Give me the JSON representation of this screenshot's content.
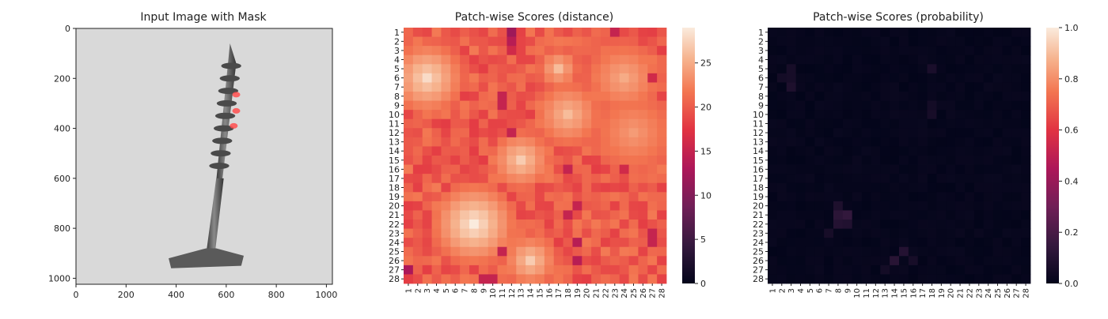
{
  "chart_data": [
    {
      "type": "image",
      "title": "Input Image with Mask",
      "xlim": [
        0,
        1024
      ],
      "ylim": [
        1024,
        0
      ],
      "xticks": [
        0,
        200,
        400,
        600,
        800,
        1000
      ],
      "yticks": [
        0,
        200,
        400,
        600,
        800,
        1000
      ],
      "mask_color": "#ff4d4d",
      "background_color": "#d9d9d9",
      "object_color": "#5a5a5a",
      "mask_regions": [
        {
          "x": 640,
          "y": 265
        },
        {
          "x": 640,
          "y": 330
        },
        {
          "x": 630,
          "y": 390
        }
      ]
    },
    {
      "type": "heatmap",
      "title": "Patch-wise Scores (distance)",
      "rows": [
        "1",
        "2",
        "3",
        "4",
        "5",
        "6",
        "7",
        "8",
        "9",
        "10",
        "11",
        "12",
        "13",
        "14",
        "15",
        "16",
        "17",
        "18",
        "19",
        "20",
        "21",
        "22",
        "23",
        "24",
        "25",
        "26",
        "27",
        "28"
      ],
      "cols": [
        "1",
        "2",
        "3",
        "4",
        "5",
        "6",
        "7",
        "8",
        "9",
        "10",
        "11",
        "12",
        "13",
        "14",
        "15",
        "16",
        "17",
        "18",
        "19",
        "20",
        "21",
        "22",
        "23",
        "24",
        "25",
        "26",
        "27",
        "28"
      ],
      "value_range": [
        0,
        29
      ],
      "colorbar_ticks": [
        0,
        5,
        10,
        15,
        20,
        25
      ],
      "base_value": 20,
      "cold_spots": [
        {
          "row": 1,
          "col": 12,
          "value": 12
        },
        {
          "row": 1,
          "col": 23,
          "value": 15
        },
        {
          "row": 2,
          "col": 12,
          "value": 14
        },
        {
          "row": 3,
          "col": 12,
          "value": 16
        },
        {
          "row": 8,
          "col": 11,
          "value": 15
        },
        {
          "row": 9,
          "col": 11,
          "value": 15
        },
        {
          "row": 12,
          "col": 12,
          "value": 15
        },
        {
          "row": 16,
          "col": 18,
          "value": 15
        },
        {
          "row": 20,
          "col": 19,
          "value": 15
        },
        {
          "row": 21,
          "col": 18,
          "value": 15
        },
        {
          "row": 24,
          "col": 19,
          "value": 14
        },
        {
          "row": 25,
          "col": 11,
          "value": 15
        },
        {
          "row": 26,
          "col": 19,
          "value": 14
        },
        {
          "row": 27,
          "col": 1,
          "value": 13
        },
        {
          "row": 28,
          "col": 9,
          "value": 15
        },
        {
          "row": 28,
          "col": 10,
          "value": 15
        },
        {
          "row": 23,
          "col": 27,
          "value": 15
        },
        {
          "row": 24,
          "col": 27,
          "value": 15
        },
        {
          "row": 6,
          "col": 27,
          "value": 16
        },
        {
          "row": 16,
          "col": 24,
          "value": 16
        }
      ],
      "warm_regions": [
        {
          "row": 6,
          "col": 3,
          "radius": 2.2,
          "value": 28
        },
        {
          "row": 22,
          "col": 8,
          "radius": 2.5,
          "value": 29
        },
        {
          "row": 10,
          "col": 18,
          "radius": 2.0,
          "value": 26
        },
        {
          "row": 15,
          "col": 13,
          "radius": 1.8,
          "value": 27
        },
        {
          "row": 26,
          "col": 14,
          "radius": 1.6,
          "value": 27
        },
        {
          "row": 6,
          "col": 24,
          "radius": 2.2,
          "value": 25
        },
        {
          "row": 12,
          "col": 25,
          "radius": 2.5,
          "value": 24
        },
        {
          "row": 5,
          "col": 17,
          "radius": 1.2,
          "value": 26
        }
      ]
    },
    {
      "type": "heatmap",
      "title": "Patch-wise Scores (probability)",
      "rows": [
        "1",
        "2",
        "3",
        "4",
        "5",
        "6",
        "7",
        "8",
        "9",
        "10",
        "11",
        "12",
        "13",
        "14",
        "15",
        "16",
        "17",
        "18",
        "19",
        "20",
        "21",
        "22",
        "23",
        "24",
        "25",
        "26",
        "27",
        "28"
      ],
      "cols": [
        "1",
        "2",
        "3",
        "4",
        "5",
        "6",
        "7",
        "8",
        "9",
        "10",
        "11",
        "12",
        "13",
        "14",
        "15",
        "16",
        "17",
        "18",
        "19",
        "20",
        "21",
        "22",
        "23",
        "24",
        "25",
        "26",
        "27",
        "28"
      ],
      "value_range": [
        0.0,
        1.0
      ],
      "colorbar_ticks": [
        "0.0",
        "0.2",
        "0.4",
        "0.6",
        "0.8",
        "1.0"
      ],
      "base_value": 0.02,
      "hot_cells": [
        {
          "row": 5,
          "col": 3,
          "value": 0.06
        },
        {
          "row": 6,
          "col": 2,
          "value": 0.05
        },
        {
          "row": 6,
          "col": 3,
          "value": 0.06
        },
        {
          "row": 7,
          "col": 3,
          "value": 0.08
        },
        {
          "row": 5,
          "col": 18,
          "value": 0.07
        },
        {
          "row": 9,
          "col": 18,
          "value": 0.05
        },
        {
          "row": 10,
          "col": 18,
          "value": 0.06
        },
        {
          "row": 20,
          "col": 8,
          "value": 0.08
        },
        {
          "row": 21,
          "col": 8,
          "value": 0.12
        },
        {
          "row": 21,
          "col": 9,
          "value": 0.14
        },
        {
          "row": 22,
          "col": 8,
          "value": 0.1
        },
        {
          "row": 22,
          "col": 9,
          "value": 0.09
        },
        {
          "row": 23,
          "col": 7,
          "value": 0.06
        },
        {
          "row": 25,
          "col": 15,
          "value": 0.1
        },
        {
          "row": 26,
          "col": 14,
          "value": 0.11
        },
        {
          "row": 26,
          "col": 16,
          "value": 0.06
        },
        {
          "row": 27,
          "col": 13,
          "value": 0.05
        }
      ]
    }
  ]
}
